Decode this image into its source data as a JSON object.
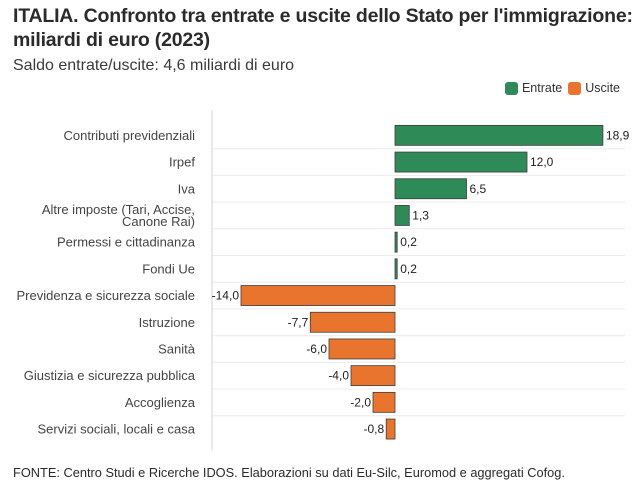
{
  "header": {
    "title": "ITALIA. Confronto tra entrate e uscite dello Stato per l'immigrazione: miliardi di euro (2023)",
    "subtitle": "Saldo entrate/uscite: 4,6 miliardi di euro"
  },
  "footer": {
    "source": "FONTE: Centro Studi e Ricerche IDOS. Elaborazioni su dati Eu-Silc, Euromod e aggregati Cofog."
  },
  "colors": {
    "entrate": "#2e8b57",
    "uscite": "#e8742e",
    "bar_border": "#3d3d3d",
    "grid": "#ececec",
    "axis": "#d8d8d8"
  },
  "chart_data": {
    "type": "bar",
    "orientation": "horizontal",
    "title": "ITALIA. Confronto tra entrate e uscite dello Stato per l'immigrazione: miliardi di euro (2023)",
    "subtitle": "Saldo entrate/uscite: 4,6 miliardi di euro",
    "unit": "miliardi di euro",
    "xlim": [
      -16.5,
      19.5
    ],
    "grid": "horizontal row separators",
    "legend": {
      "placement": "top-right",
      "entries": [
        {
          "name": "Entrate",
          "color": "#2e8b57"
        },
        {
          "name": "Uscite",
          "color": "#e8742e"
        }
      ]
    },
    "categories": [
      [
        "Contributi previdenziali"
      ],
      [
        "Irpef"
      ],
      [
        "Iva"
      ],
      [
        "Altre imposte (Tari, Accise,",
        "Canone Rai)"
      ],
      [
        "Permessi e cittadinanza"
      ],
      [
        "Fondi Ue"
      ],
      [
        "Previdenza e sicurezza sociale"
      ],
      [
        "Istruzione"
      ],
      [
        "Sanità"
      ],
      [
        "Giustizia e sicurezza pubblica"
      ],
      [
        "Accoglienza"
      ],
      [
        "Servizi sociali, locali e casa"
      ]
    ],
    "values": [
      18.9,
      12.0,
      6.5,
      1.3,
      0.2,
      0.2,
      -14.0,
      -7.7,
      -6.0,
      -4.0,
      -2.0,
      -0.8
    ],
    "value_labels": [
      "18,9",
      "12,0",
      "6,5",
      "1,3",
      "0,2",
      "0,2",
      "-14,0",
      "-7,7",
      "-6,0",
      "-4,0",
      "-2,0",
      "-0,8"
    ],
    "series_of_value": [
      "Entrate",
      "Entrate",
      "Entrate",
      "Entrate",
      "Entrate",
      "Entrate",
      "Uscite",
      "Uscite",
      "Uscite",
      "Uscite",
      "Uscite",
      "Uscite"
    ]
  }
}
